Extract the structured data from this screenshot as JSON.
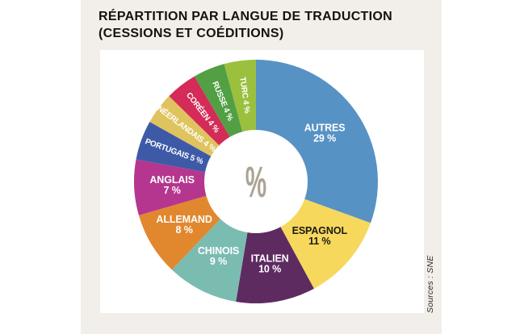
{
  "header": {
    "title_line1": "RÉPARTITION PAR LANGUE DE TRADUCTION",
    "title_line2": "(CESSIONS ET COÉDITIONS)"
  },
  "source_note": "Sources : SNE",
  "colors": {
    "page_background": "#ffffff",
    "panel_background": "#f2efea",
    "card_background": "#ffffff",
    "title_text": "#15110e",
    "center_symbol": "#aba394"
  },
  "chart_data": {
    "type": "pie",
    "variant": "donut",
    "title": "Répartition par langue de traduction (cessions et coéditions)",
    "unit": "%",
    "center_label": "%",
    "legend_position": "none",
    "labels_on_slices": true,
    "start_angle_deg_from_top": 0,
    "direction": "clockwise",
    "segments": [
      {
        "label": "AUTRES",
        "value": 29,
        "display": "29 %",
        "color": "#5792c5",
        "text_color": "#ffffff",
        "label_layout": "stacked"
      },
      {
        "label": "ESPAGNOL",
        "value": 11,
        "display": "11 %",
        "color": "#f6d85c",
        "text_color": "#1c1a17",
        "label_layout": "stacked"
      },
      {
        "label": "ITALIEN",
        "value": 10,
        "display": "10 %",
        "color": "#5e2b61",
        "text_color": "#ffffff",
        "label_layout": "stacked"
      },
      {
        "label": "CHINOIS",
        "value": 9,
        "display": "9 %",
        "color": "#7bbcb1",
        "text_color": "#ffffff",
        "label_layout": "stacked"
      },
      {
        "label": "ALLEMAND",
        "value": 8,
        "display": "8 %",
        "color": "#e1882f",
        "text_color": "#ffffff",
        "label_layout": "stacked"
      },
      {
        "label": "ANGLAIS",
        "value": 7,
        "display": "7 %",
        "color": "#b5368e",
        "text_color": "#ffffff",
        "label_layout": "stacked"
      },
      {
        "label": "PORTUGAIS",
        "value": 5,
        "display": "5 %",
        "color": "#3e5aa7",
        "text_color": "#ffffff",
        "label_layout": "radial"
      },
      {
        "label": "NÉERLANDAIS",
        "value": 4,
        "display": "4 %",
        "color": "#dfc35e",
        "text_color": "#ffffff",
        "label_layout": "radial"
      },
      {
        "label": "CORÉEN",
        "value": 4,
        "display": "4 %",
        "color": "#d42b58",
        "text_color": "#ffffff",
        "label_layout": "radial"
      },
      {
        "label": "RUSSE",
        "value": 4,
        "display": "4 %",
        "color": "#529f44",
        "text_color": "#ffffff",
        "label_layout": "radial"
      },
      {
        "label": "TURC",
        "value": 4,
        "display": "4 %",
        "color": "#9ac03e",
        "text_color": "#ffffff",
        "label_layout": "radial"
      }
    ]
  }
}
